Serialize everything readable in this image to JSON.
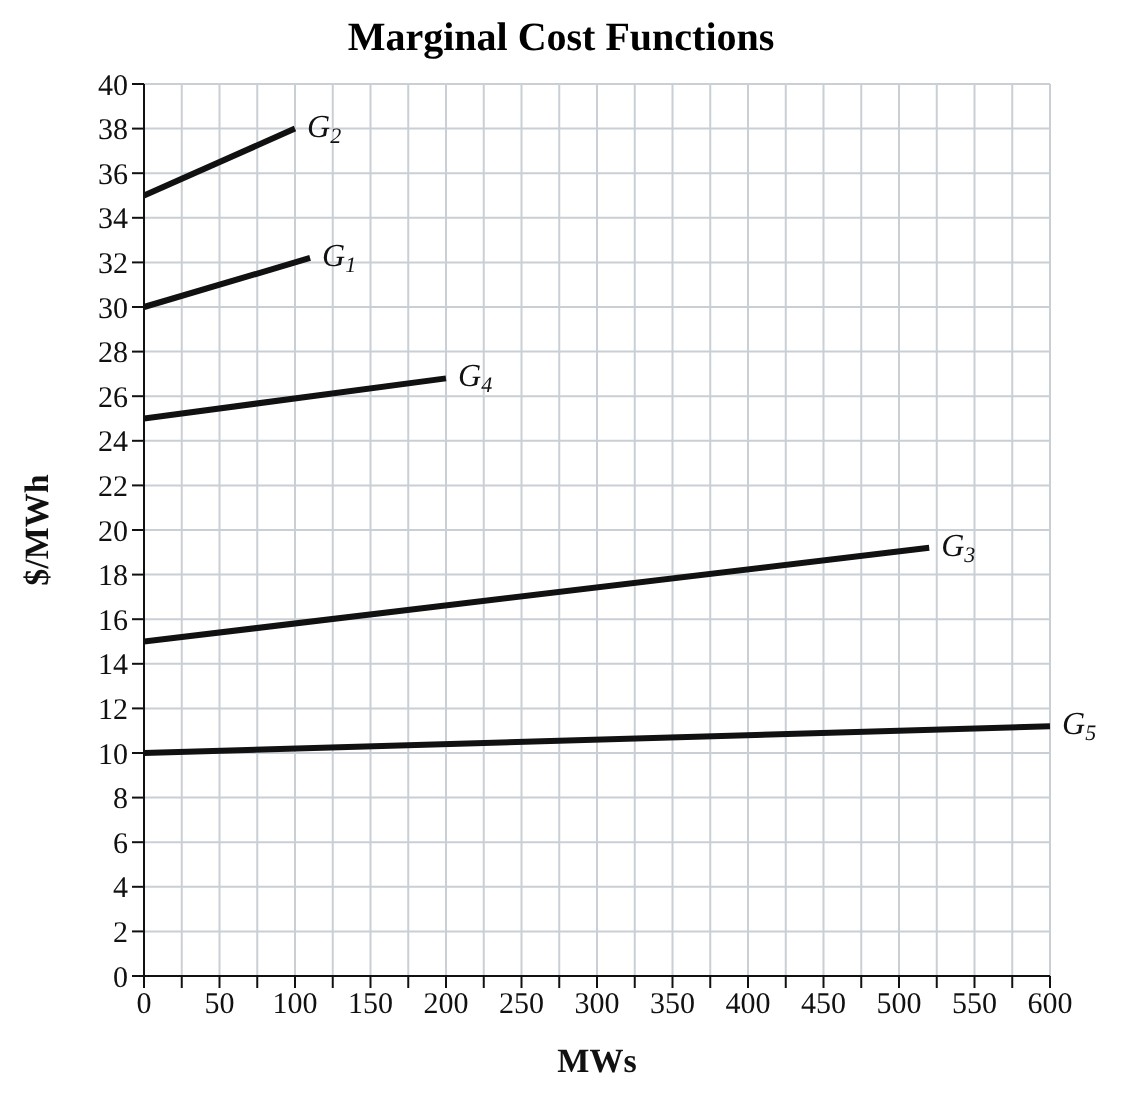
{
  "chart_data": {
    "type": "line",
    "title": "Marginal Cost Functions",
    "xlabel": "MWs",
    "ylabel": "$/MWh",
    "xlim": [
      0,
      600
    ],
    "ylim": [
      0,
      40
    ],
    "xticks": [
      0,
      {
        "value": 25,
        "label": null
      },
      50,
      {
        "value": 75,
        "label": null
      },
      100,
      {
        "value": 125,
        "label": null
      },
      150,
      {
        "value": 175,
        "label": null
      },
      200,
      {
        "value": 225,
        "label": null
      },
      250,
      {
        "value": 275,
        "label": null
      },
      300,
      {
        "value": 325,
        "label": null
      },
      350,
      {
        "value": 375,
        "label": null
      },
      400,
      {
        "value": 425,
        "label": null
      },
      450,
      {
        "value": 475,
        "label": null
      },
      500,
      {
        "value": 525,
        "label": null
      },
      550,
      {
        "value": 575,
        "label": null
      },
      600
    ],
    "yticks": [
      0,
      2,
      4,
      6,
      8,
      10,
      12,
      14,
      16,
      18,
      20,
      22,
      24,
      26,
      28,
      30,
      32,
      34,
      36,
      38,
      40
    ],
    "grid": true,
    "series": [
      {
        "color": "#111111",
        "x": [
          0,
          100
        ],
        "values": [
          35,
          38
        ]
      },
      {
        "color": "#111111",
        "x": [
          0,
          110
        ],
        "values": [
          30,
          32.2
        ]
      },
      {
        "color": "#111111",
        "x": [
          0,
          200
        ],
        "values": [
          25,
          26.8
        ]
      },
      {
        "color": "#111111",
        "x": [
          0,
          520
        ],
        "values": [
          15,
          19.2
        ]
      },
      {
        "color": "#111111",
        "x": [
          0,
          600
        ],
        "values": [
          10,
          11.2
        ]
      }
    ],
    "annotations": [
      {
        "text": "G$_{2}$",
        "x": 100,
        "y": 38
      },
      {
        "text": "G$_{1}$",
        "x": 110,
        "y": 32.2
      },
      {
        "text": "G$_{4}$",
        "x": 200,
        "y": 26.8
      },
      {
        "text": "G$_{3}$",
        "x": 520,
        "y": 19.2
      },
      {
        "text": "G$_{5}$",
        "x": 600,
        "y": 11.2
      }
    ]
  }
}
